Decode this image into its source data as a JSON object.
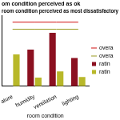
{
  "chart_data": {
    "type": "bar",
    "title": [
      "om condition perceived as ok",
      "room condition perceived as most dissatisfactory"
    ],
    "x_label": "room condition",
    "categories": [
      "ature",
      "humidity",
      "ventilation",
      "lighting"
    ],
    "series": [
      {
        "name": "ratin",
        "type": "bar",
        "color": "#8b1020",
        "values": [
          null,
          52,
          76,
          40
        ]
      },
      {
        "name": "ratin",
        "type": "bar",
        "color": "#b8b82a",
        "values": [
          45,
          12,
          21,
          13
        ]
      },
      {
        "name": "overa",
        "type": "line",
        "line_style": "solid",
        "color": "#d01010",
        "values": [
          91,
          91,
          91,
          91
        ]
      },
      {
        "name": "overa",
        "type": "line",
        "line_style": "solid",
        "color": "#9a9a20",
        "values": [
          81,
          81,
          81,
          81
        ]
      }
    ],
    "ylim": [
      0,
      100
    ],
    "grid": false,
    "legend": "right",
    "tick_labels": "x"
  }
}
